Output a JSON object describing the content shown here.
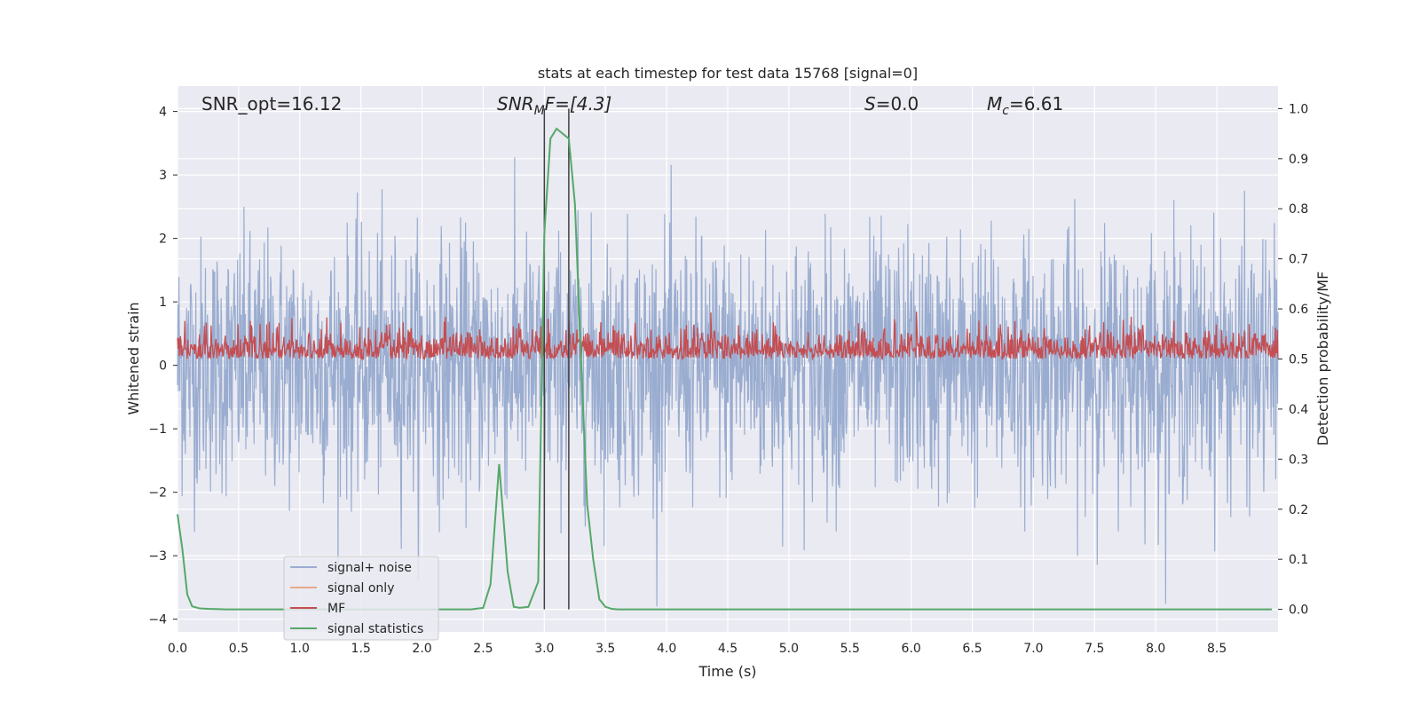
{
  "chart_data": {
    "type": "line",
    "title": "stats at each timestep for test data 15768 [signal=0]",
    "xlabel": "Time (s)",
    "ylabel_left": "Whitened strain",
    "ylabel_right": "Detection probability/MF",
    "xlim": [
      0.0,
      9.0
    ],
    "ylim_left": [
      -4.2,
      4.4
    ],
    "ylim_right": [
      -0.045,
      1.045
    ],
    "x_ticks": [
      "0.0",
      "0.5",
      "1.0",
      "1.5",
      "2.0",
      "2.5",
      "3.0",
      "3.5",
      "4.0",
      "4.5",
      "5.0",
      "5.5",
      "6.0",
      "6.5",
      "7.0",
      "7.5",
      "8.0",
      "8.5"
    ],
    "x_tick_values": [
      0.0,
      0.5,
      1.0,
      1.5,
      2.0,
      2.5,
      3.0,
      3.5,
      4.0,
      4.5,
      5.0,
      5.5,
      6.0,
      6.5,
      7.0,
      7.5,
      8.0,
      8.5
    ],
    "y_left_ticks": [
      "4",
      "3",
      "2",
      "1",
      "0",
      "−1",
      "−2",
      "−3",
      "−4"
    ],
    "y_left_tick_values": [
      4,
      3,
      2,
      1,
      0,
      -1,
      -2,
      -3,
      -4
    ],
    "y_right_ticks": [
      "1.0",
      "0.9",
      "0.8",
      "0.7",
      "0.6",
      "0.5",
      "0.4",
      "0.3",
      "0.2",
      "0.1",
      "0.0"
    ],
    "y_right_tick_values": [
      1.0,
      0.9,
      0.8,
      0.7,
      0.6,
      0.5,
      0.4,
      0.3,
      0.2,
      0.1,
      0.0
    ],
    "grid": true,
    "legend_position": "lower-left",
    "annotations": {
      "snr_opt": "SNR_opt=16.12",
      "snr_mf_main": "SNR",
      "snr_mf_sub": "M",
      "snr_mf_rest": "F=[4.3]",
      "s_main": "S",
      "s_rest": "=0.0",
      "mc_main": "M",
      "mc_sub": "c",
      "mc_rest": "=6.61"
    },
    "vertical_lines": [
      3.0,
      3.2
    ],
    "series": [
      {
        "name": "signal+ noise",
        "color": "#9aadd0",
        "kind": "noise",
        "axis": "left",
        "envelope_upper": 1.8,
        "envelope_lower": -1.8,
        "spike_max": 4.0,
        "spike_min": -3.8
      },
      {
        "name": "signal only",
        "color": "#e8a98a",
        "kind": "flat",
        "axis": "left",
        "values": []
      },
      {
        "name": "MF",
        "color": "#c44e52",
        "kind": "noise",
        "axis": "right",
        "baseline": 0.5,
        "band": [
          0.5,
          0.6
        ],
        "spike_max": 0.6
      },
      {
        "name": "signal statistics",
        "color": "#55a868",
        "kind": "line",
        "axis": "right",
        "x": [
          0.0,
          0.04,
          0.08,
          0.12,
          0.18,
          0.25,
          0.4,
          0.6,
          1.0,
          1.5,
          2.0,
          2.4,
          2.5,
          2.56,
          2.63,
          2.7,
          2.75,
          2.8,
          2.87,
          2.95,
          3.0,
          3.05,
          3.1,
          3.15,
          3.2,
          3.25,
          3.3,
          3.35,
          3.4,
          3.45,
          3.5,
          3.55,
          3.6,
          4.0,
          5.0,
          6.0,
          7.0,
          8.0,
          8.95
        ],
        "y": [
          0.19,
          0.12,
          0.03,
          0.006,
          0.002,
          0.001,
          0.0,
          0.0,
          0.0,
          0.0,
          0.0,
          0.0,
          0.003,
          0.05,
          0.29,
          0.075,
          0.005,
          0.003,
          0.005,
          0.055,
          0.75,
          0.94,
          0.96,
          0.95,
          0.94,
          0.81,
          0.5,
          0.21,
          0.1,
          0.02,
          0.005,
          0.001,
          0.0,
          0.0,
          0.0,
          0.0,
          0.0,
          0.0,
          0.0
        ]
      }
    ]
  }
}
